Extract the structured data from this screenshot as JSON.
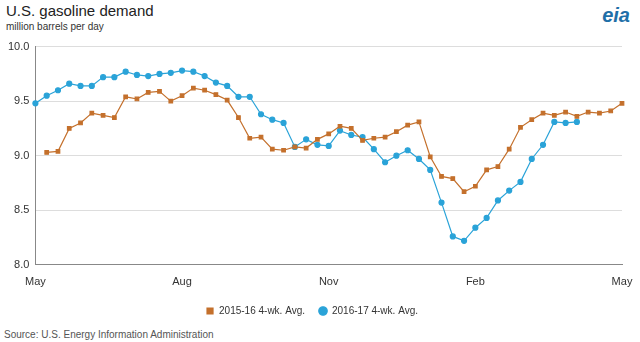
{
  "chart_data": {
    "type": "line",
    "title": "U.S. gasoline demand",
    "subtitle": "million barrels per day",
    "source": "Source: U.S. Energy Information Administration",
    "logo_text": "eia",
    "categories": [
      "May",
      null,
      null,
      null,
      null,
      null,
      null,
      null,
      null,
      null,
      null,
      null,
      null,
      "Aug",
      null,
      null,
      null,
      null,
      null,
      null,
      null,
      null,
      null,
      null,
      null,
      null,
      "Nov",
      null,
      null,
      null,
      null,
      null,
      null,
      null,
      null,
      null,
      null,
      null,
      null,
      "Feb",
      null,
      null,
      null,
      null,
      null,
      null,
      null,
      null,
      null,
      null,
      null,
      null,
      "May"
    ],
    "series": [
      {
        "name": "2015-16 4-wk. Avg.",
        "color": "#c4702c",
        "marker": "square",
        "line_style": "solid",
        "values": [
          null,
          9.03,
          9.04,
          9.25,
          9.3,
          9.39,
          9.37,
          9.35,
          9.54,
          9.52,
          9.58,
          9.59,
          9.5,
          9.55,
          9.62,
          9.6,
          9.56,
          9.51,
          9.35,
          9.16,
          9.17,
          9.06,
          9.05,
          9.08,
          9.07,
          9.15,
          9.2,
          9.27,
          9.25,
          9.14,
          9.16,
          9.17,
          9.22,
          9.28,
          9.31,
          8.99,
          8.81,
          8.79,
          8.67,
          8.72,
          8.87,
          8.9,
          9.06,
          9.26,
          9.33,
          9.39,
          9.37,
          9.4,
          9.36,
          9.4,
          9.39,
          9.41,
          9.48
        ]
      },
      {
        "name": "2016-17 4-wk. Avg.",
        "color": "#2aa3d8",
        "marker": "circle",
        "line_style": "solid",
        "values": [
          9.48,
          9.55,
          9.6,
          9.66,
          9.64,
          9.64,
          9.72,
          9.72,
          9.77,
          9.74,
          9.73,
          9.75,
          9.76,
          9.78,
          9.77,
          9.73,
          9.67,
          9.64,
          9.54,
          9.54,
          9.38,
          9.33,
          9.3,
          9.08,
          9.15,
          9.1,
          9.09,
          9.23,
          9.19,
          9.17,
          9.06,
          8.94,
          9.0,
          9.05,
          8.97,
          8.87,
          8.57,
          8.26,
          8.22,
          8.34,
          8.43,
          8.59,
          8.68,
          8.76,
          8.97,
          9.1,
          9.31,
          9.3,
          9.31,
          null,
          null,
          null,
          null
        ]
      }
    ],
    "ylim": [
      8.0,
      10.0
    ],
    "yticks": [
      {
        "value": 8.0,
        "label": "8.0"
      },
      {
        "value": 8.5,
        "label": "8.5"
      },
      {
        "value": 9.0,
        "label": "9.0"
      },
      {
        "value": 9.5,
        "label": "9.5"
      },
      {
        "value": 10.0,
        "label": "10.0"
      }
    ],
    "grid": "y",
    "legend": "bottom"
  }
}
